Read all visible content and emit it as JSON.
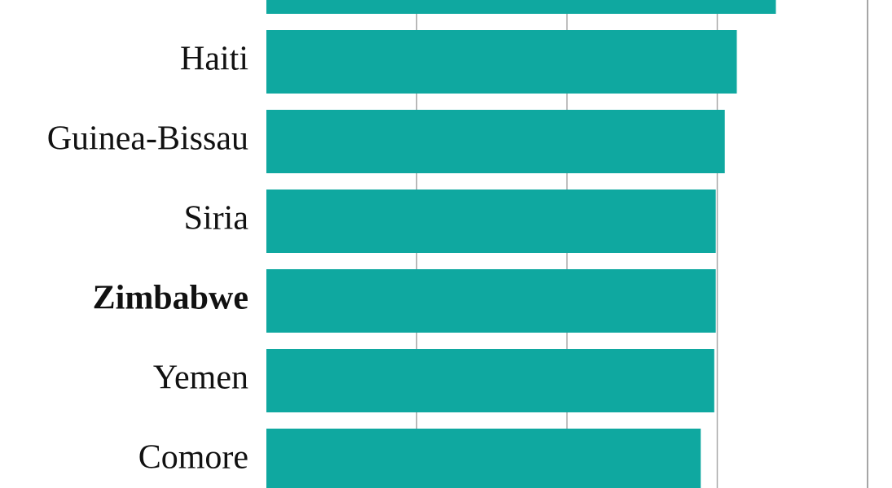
{
  "chart_data": {
    "type": "barh",
    "categories": [
      null,
      "Haiti",
      "Guinea-Bissau",
      "Siria",
      "Zimbabwe",
      "Yemen",
      "Comore"
    ],
    "values": [
      3.39,
      3.13,
      3.05,
      2.99,
      2.99,
      2.98,
      2.89
    ],
    "color": "#0fa8a0",
    "highlight_index": 4,
    "xlim": [
      0,
      4
    ],
    "xticks": [
      1,
      2,
      3,
      4
    ],
    "grid": true
  }
}
